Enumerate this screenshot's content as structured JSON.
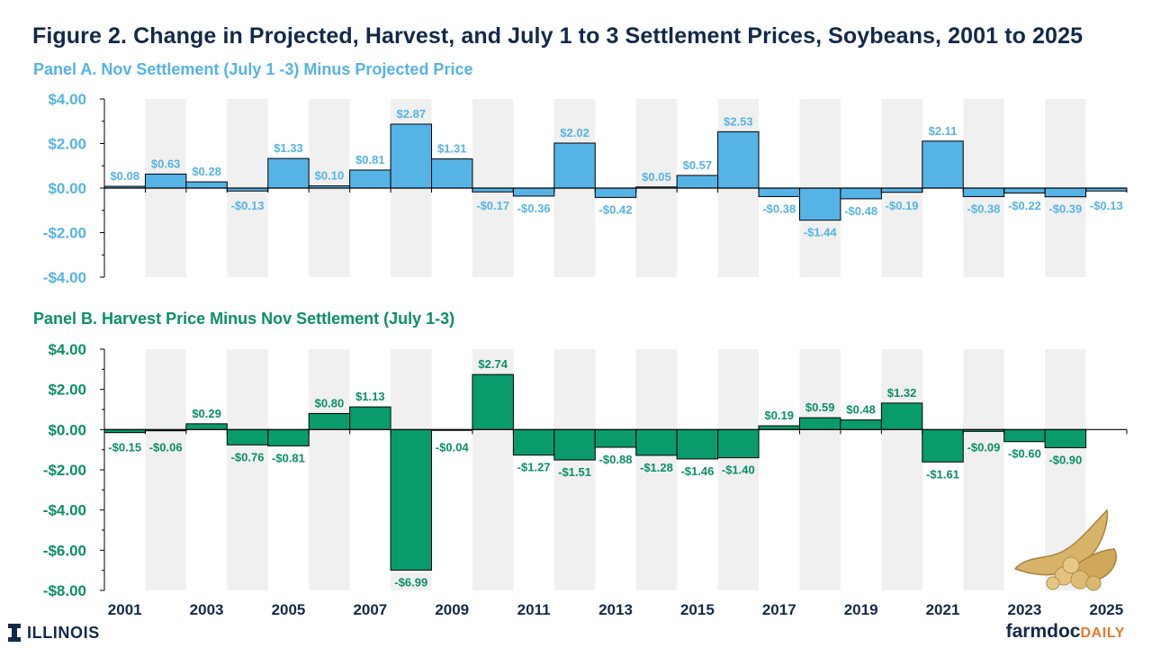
{
  "title": "Figure 2. Change in Projected, Harvest, and July 1 to 3 Settlement Prices, Soybeans, 2001 to 2025",
  "footer": {
    "org": "ILLINOIS",
    "brand_main": "farmdoc",
    "brand_sub": "DAILY"
  },
  "colors": {
    "title": "#13294b",
    "panelA": "#55b3e6",
    "panelB": "#0a9b6d",
    "labelA": "#55b3e6",
    "labelB": "#0a8f66",
    "band": "#f0f0f0",
    "brand_orange": "#e8762b"
  },
  "icons": [
    "illinois-block-i-icon",
    "soybean-pods-icon"
  ],
  "chart_data": [
    {
      "type": "bar",
      "title": "Panel A. Nov Settlement (July 1 -3) Minus Projected Price",
      "categories": [
        "2001",
        "2002",
        "2003",
        "2004",
        "2005",
        "2006",
        "2007",
        "2008",
        "2009",
        "2010",
        "2011",
        "2012",
        "2013",
        "2014",
        "2015",
        "2016",
        "2017",
        "2018",
        "2019",
        "2020",
        "2021",
        "2022",
        "2023",
        "2024",
        "2025"
      ],
      "x_tick_labels": [
        "2001",
        "2003",
        "2005",
        "2007",
        "2009",
        "2011",
        "2013",
        "2015",
        "2017",
        "2019",
        "2021",
        "2023",
        "2025"
      ],
      "values": [
        0.08,
        0.63,
        0.28,
        -0.13,
        1.33,
        0.1,
        0.81,
        2.87,
        1.31,
        -0.17,
        -0.36,
        2.02,
        -0.42,
        0.05,
        0.57,
        2.53,
        -0.38,
        -1.44,
        -0.48,
        -0.19,
        2.11,
        -0.38,
        -0.22,
        -0.39,
        -0.13
      ],
      "data_labels": [
        "$0.08",
        "$0.63",
        "$0.28",
        "-$0.13",
        "$1.33",
        "$0.10",
        "$0.81",
        "$2.87",
        "$1.31",
        "-$0.17",
        "-$0.36",
        "$2.02",
        "-$0.42",
        "$0.05",
        "$0.57",
        "$2.53",
        "-$0.38",
        "-$1.44",
        "-$0.48",
        "-$0.19",
        "$2.11",
        "-$0.38",
        "-$0.22",
        "-$0.39",
        "-$0.13"
      ],
      "ylim": [
        -4,
        4
      ],
      "y_ticks": [
        -4,
        -2,
        0,
        2,
        4
      ],
      "y_tick_labels": [
        "-$4.00",
        "-$2.00",
        "$0.00",
        "$2.00",
        "$4.00"
      ],
      "xlabel": "",
      "ylabel": "",
      "grid": false
    },
    {
      "type": "bar",
      "title": "Panel B. Harvest Price Minus Nov Settlement (July 1-3)",
      "categories": [
        "2001",
        "2002",
        "2003",
        "2004",
        "2005",
        "2006",
        "2007",
        "2008",
        "2009",
        "2010",
        "2011",
        "2012",
        "2013",
        "2014",
        "2015",
        "2016",
        "2017",
        "2018",
        "2019",
        "2020",
        "2021",
        "2022",
        "2023",
        "2024",
        "2025"
      ],
      "x_tick_labels": [
        "2001",
        "2003",
        "2005",
        "2007",
        "2009",
        "2011",
        "2013",
        "2015",
        "2017",
        "2019",
        "2021",
        "2023",
        "2025"
      ],
      "values": [
        -0.15,
        -0.06,
        0.29,
        -0.76,
        -0.81,
        0.8,
        1.13,
        -6.99,
        -0.04,
        2.74,
        -1.27,
        -1.51,
        -0.88,
        -1.28,
        -1.46,
        -1.4,
        0.19,
        0.59,
        0.48,
        1.32,
        -1.61,
        -0.09,
        -0.6,
        -0.9,
        null
      ],
      "data_labels": [
        "-$0.15",
        "-$0.06",
        "$0.29",
        "-$0.76",
        "-$0.81",
        "$0.80",
        "$1.13",
        "-$6.99",
        "-$0.04",
        "$2.74",
        "-$1.27",
        "-$1.51",
        "-$0.88",
        "-$1.28",
        "-$1.46",
        "-$1.40",
        "$0.19",
        "$0.59",
        "$0.48",
        "$1.32",
        "-$1.61",
        "-$0.09",
        "-$0.60",
        "-$0.90",
        ""
      ],
      "ylim": [
        -8,
        4
      ],
      "y_ticks": [
        -8,
        -6,
        -4,
        -2,
        0,
        2,
        4
      ],
      "y_tick_labels": [
        "-$8.00",
        "-$6.00",
        "-$4.00",
        "-$2.00",
        "$0.00",
        "$2.00",
        "$4.00"
      ],
      "xlabel": "",
      "ylabel": "",
      "grid": false
    }
  ]
}
